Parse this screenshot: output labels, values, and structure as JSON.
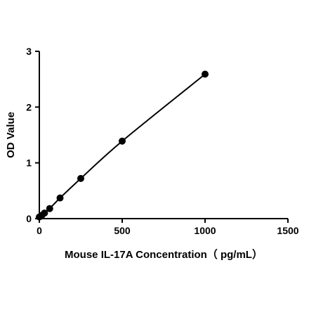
{
  "chart_data": {
    "type": "scatter",
    "title": "",
    "xlabel": "Mouse IL-17A Concentration（ pg/mL）",
    "ylabel": "OD Value",
    "xlim": [
      0,
      1500
    ],
    "ylim": [
      0,
      3
    ],
    "x_ticks": [
      0,
      500,
      1000,
      1500
    ],
    "y_ticks": [
      0,
      1,
      2,
      3
    ],
    "x_tick_labels": [
      "0",
      "500",
      "1000",
      "1500"
    ],
    "y_tick_labels": [
      "0",
      "1",
      "2",
      "3"
    ],
    "grid": false,
    "legend": "none",
    "fit_curve": true,
    "series": [
      {
        "x": [
          0,
          15.6,
          31.25,
          62.5,
          125,
          250,
          500,
          1000
        ],
        "y": [
          0.03,
          0.06,
          0.1,
          0.18,
          0.37,
          0.72,
          1.39,
          2.59
        ],
        "color": "#000000"
      }
    ]
  }
}
